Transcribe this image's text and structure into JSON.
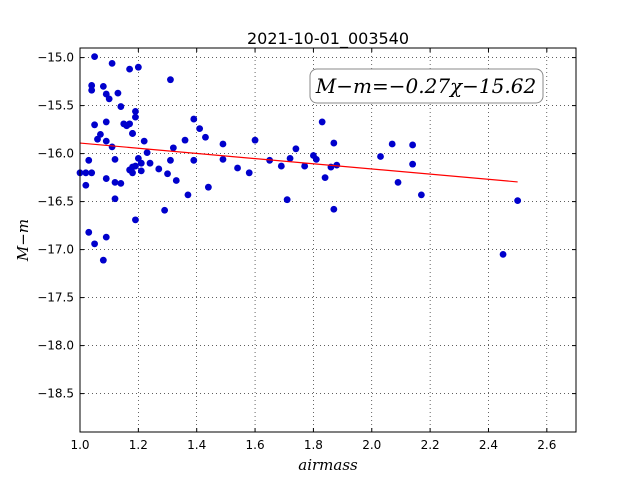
{
  "chart_data": {
    "type": "scatter",
    "title": "2021-10-01_003540",
    "xlabel": "airmass",
    "ylabel": "M−m",
    "xlim": [
      1.0,
      2.7
    ],
    "ylim": [
      -18.9,
      -14.9
    ],
    "y_inverted": true,
    "x_ticks": [
      1.0,
      1.2,
      1.4,
      1.6,
      1.8,
      2.0,
      2.2,
      2.4,
      2.6
    ],
    "x_tick_labels": [
      "1.0",
      "1.2",
      "1.4",
      "1.6",
      "1.8",
      "2.0",
      "2.2",
      "2.4",
      "2.6"
    ],
    "y_ticks": [
      -15.0,
      -15.5,
      -16.0,
      -16.5,
      -17.0,
      -17.5,
      -18.0,
      -18.5
    ],
    "y_tick_labels": [
      "−15.0",
      "−15.5",
      "−16.0",
      "−16.5",
      "−17.0",
      "−17.5",
      "−18.0",
      "−18.5"
    ],
    "grid": true,
    "annotation": "M−m=−0.27χ−15.62",
    "fit_line": {
      "slope": -0.27,
      "intercept": -15.62,
      "x_range": [
        1.0,
        2.5
      ],
      "color": "#ff0000"
    },
    "point_color": "#0000cc",
    "points": [
      [
        1.0,
        -16.2
      ],
      [
        1.02,
        -16.33
      ],
      [
        1.02,
        -16.2
      ],
      [
        1.03,
        -16.07
      ],
      [
        1.03,
        -16.82
      ],
      [
        1.04,
        -15.34
      ],
      [
        1.04,
        -16.2
      ],
      [
        1.04,
        -15.29
      ],
      [
        1.05,
        -14.99
      ],
      [
        1.05,
        -15.7
      ],
      [
        1.05,
        -16.94
      ],
      [
        1.06,
        -15.85
      ],
      [
        1.07,
        -15.8
      ],
      [
        1.08,
        -17.11
      ],
      [
        1.08,
        -15.3
      ],
      [
        1.09,
        -15.38
      ],
      [
        1.09,
        -15.67
      ],
      [
        1.09,
        -16.26
      ],
      [
        1.09,
        -16.87
      ],
      [
        1.09,
        -15.87
      ],
      [
        1.1,
        -15.43
      ],
      [
        1.11,
        -15.06
      ],
      [
        1.11,
        -15.93
      ],
      [
        1.12,
        -16.06
      ],
      [
        1.12,
        -16.47
      ],
      [
        1.12,
        -16.3
      ],
      [
        1.13,
        -15.37
      ],
      [
        1.14,
        -15.51
      ],
      [
        1.14,
        -16.31
      ],
      [
        1.15,
        -15.69
      ],
      [
        1.16,
        -15.71
      ],
      [
        1.17,
        -15.12
      ],
      [
        1.17,
        -16.17
      ],
      [
        1.17,
        -15.69
      ],
      [
        1.18,
        -16.2
      ],
      [
        1.18,
        -15.79
      ],
      [
        1.18,
        -16.14
      ],
      [
        1.18,
        -15.79
      ],
      [
        1.19,
        -15.56
      ],
      [
        1.19,
        -16.13
      ],
      [
        1.19,
        -15.62
      ],
      [
        1.19,
        -16.69
      ],
      [
        1.2,
        -15.1
      ],
      [
        1.2,
        -16.05
      ],
      [
        1.21,
        -16.1
      ],
      [
        1.21,
        -16.18
      ],
      [
        1.22,
        -15.87
      ],
      [
        1.23,
        -15.99
      ],
      [
        1.24,
        -16.1
      ],
      [
        1.27,
        -16.16
      ],
      [
        1.29,
        -16.59
      ],
      [
        1.3,
        -16.21
      ],
      [
        1.31,
        -15.23
      ],
      [
        1.31,
        -16.07
      ],
      [
        1.32,
        -15.94
      ],
      [
        1.33,
        -16.28
      ],
      [
        1.36,
        -15.86
      ],
      [
        1.37,
        -16.43
      ],
      [
        1.39,
        -15.64
      ],
      [
        1.39,
        -16.07
      ],
      [
        1.41,
        -15.74
      ],
      [
        1.43,
        -15.83
      ],
      [
        1.44,
        -16.35
      ],
      [
        1.49,
        -15.9
      ],
      [
        1.49,
        -16.06
      ],
      [
        1.54,
        -16.15
      ],
      [
        1.58,
        -16.2
      ],
      [
        1.6,
        -15.86
      ],
      [
        1.65,
        -16.07
      ],
      [
        1.69,
        -16.13
      ],
      [
        1.71,
        -16.48
      ],
      [
        1.72,
        -16.05
      ],
      [
        1.74,
        -15.95
      ],
      [
        1.77,
        -16.13
      ],
      [
        1.8,
        -16.02
      ],
      [
        1.81,
        -16.06
      ],
      [
        1.83,
        -15.67
      ],
      [
        1.84,
        -16.25
      ],
      [
        1.86,
        -16.14
      ],
      [
        1.87,
        -15.89
      ],
      [
        1.87,
        -16.58
      ],
      [
        1.88,
        -16.12
      ],
      [
        2.03,
        -16.03
      ],
      [
        2.07,
        -15.9
      ],
      [
        2.09,
        -16.3
      ],
      [
        2.14,
        -15.91
      ],
      [
        2.14,
        -16.11
      ],
      [
        2.17,
        -16.43
      ],
      [
        2.45,
        -17.05
      ],
      [
        2.5,
        -16.49
      ]
    ]
  }
}
